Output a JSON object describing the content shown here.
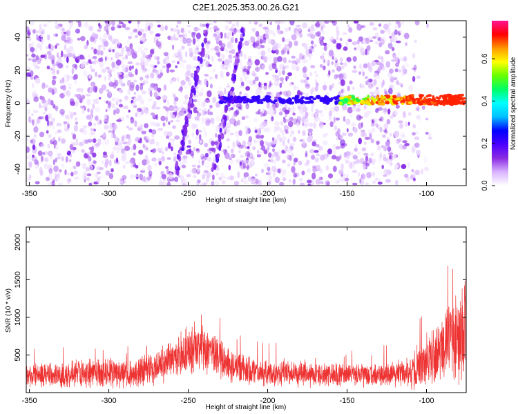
{
  "figure": {
    "title": "C2E1.2025.353.00.26.G21"
  },
  "colors": {
    "snr_line": "#ee3333",
    "axis": "#000000",
    "background": "#ffffff"
  },
  "chart_data": [
    {
      "type": "heatmap",
      "title": "C2E1.2025.353.00.26.G21",
      "xlabel": "Height of straight line (km)",
      "ylabel": "Frequency (Hz)",
      "xlim": [
        -352,
        -75
      ],
      "ylim": [
        -50,
        50
      ],
      "xticks": [
        -350,
        -300,
        -250,
        -200,
        -150,
        -100
      ],
      "xtick_labels": [
        "-350",
        "-300",
        "-250",
        "-200",
        "-150",
        "-100"
      ],
      "yticks": [
        -40,
        -20,
        0,
        20,
        40
      ],
      "ytick_labels": [
        "-40",
        "-20",
        "0",
        "20",
        "40"
      ],
      "colorbar": {
        "label": "Normalized spectral amplitude",
        "range": [
          0.0,
          0.78
        ],
        "ticks": [
          0.0,
          0.2,
          0.4,
          0.6
        ],
        "tick_labels": [
          "0.0",
          "0.2",
          "0.4",
          "0.6"
        ],
        "colormap": [
          "#ffffff",
          "#d9b3ff",
          "#8a2be2",
          "#4b00ff",
          "#0000ff",
          "#00bfff",
          "#00ffff",
          "#00ff66",
          "#66ff00",
          "#ffff00",
          "#ff9900",
          "#ff0000",
          "#ff1493"
        ]
      },
      "features": [
        {
          "name": "carrier band",
          "frequency_hz": 2,
          "height_km_range": [
            -230,
            -75
          ],
          "amplitude_range": [
            0.1,
            0.7
          ]
        },
        {
          "name": "diagonal streak",
          "height_km_range": [
            -258,
            -238
          ],
          "frequency_hz_range": [
            -45,
            48
          ]
        },
        {
          "name": "diagonal streak",
          "height_km_range": [
            -235,
            -215
          ],
          "frequency_hz_range": [
            -45,
            45
          ]
        },
        {
          "name": "noise field",
          "height_km_range": [
            -352,
            -105
          ],
          "frequency_hz_range": [
            -50,
            50
          ],
          "amplitude_range": [
            0.02,
            0.15
          ]
        }
      ]
    },
    {
      "type": "line",
      "xlabel": "Height of straight line (km)",
      "ylabel": "SNR (10 * v/v)",
      "xlim": [
        -352,
        -75
      ],
      "ylim": [
        0,
        2200
      ],
      "xticks": [
        -350,
        -300,
        -250,
        -200,
        -150,
        -100
      ],
      "xtick_labels": [
        "-350",
        "-300",
        "-250",
        "-200",
        "-150",
        "-100"
      ],
      "yticks": [
        500,
        1000,
        1500,
        2000
      ],
      "ytick_labels": [
        "500",
        "1000",
        "1500",
        "2000"
      ],
      "series": [
        {
          "name": "SNR",
          "envelope_x": [
            -352,
            -330,
            -300,
            -280,
            -265,
            -255,
            -245,
            -235,
            -225,
            -210,
            -190,
            -170,
            -150,
            -130,
            -115,
            -108,
            -100,
            -90,
            -82,
            -78,
            -75
          ],
          "envelope_baseline": [
            230,
            250,
            260,
            270,
            380,
            520,
            580,
            520,
            380,
            280,
            250,
            240,
            230,
            240,
            250,
            300,
            480,
            580,
            700,
            800,
            900
          ],
          "envelope_spread": [
            180,
            200,
            220,
            230,
            280,
            330,
            380,
            320,
            260,
            210,
            190,
            180,
            170,
            180,
            200,
            280,
            400,
            500,
            650,
            800,
            700
          ]
        }
      ]
    }
  ]
}
